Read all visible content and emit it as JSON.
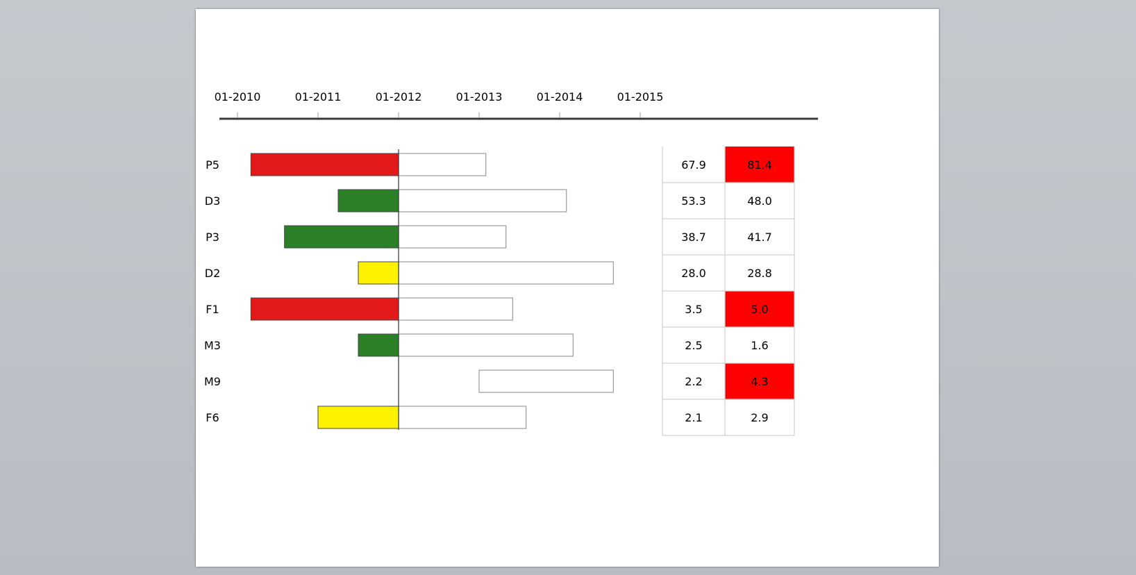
{
  "chart_data": {
    "type": "bar",
    "axis_ticks": [
      "01-2010",
      "01-2011",
      "01-2012",
      "01-2013",
      "01-2014",
      "01-2015"
    ],
    "x_range": [
      "2009-12",
      "2016-10"
    ],
    "reference_date": "2012-01",
    "rows": [
      {
        "label": "P5",
        "start": "2010-03",
        "end": "2013-02",
        "color": "#e31a1c",
        "val1": "67.9",
        "val2": "81.4",
        "val2_highlight": true
      },
      {
        "label": "D3",
        "start": "2011-04",
        "end": "2014-02",
        "color": "#2a7f27",
        "val1": "53.3",
        "val2": "48.0",
        "val2_highlight": false
      },
      {
        "label": "P3",
        "start": "2010-08",
        "end": "2013-05",
        "color": "#2a7f27",
        "val1": "38.7",
        "val2": "41.7",
        "val2_highlight": false
      },
      {
        "label": "D2",
        "start": "2011-07",
        "end": "2014-09",
        "color": "#fff200",
        "val1": "28.0",
        "val2": "28.8",
        "val2_highlight": false
      },
      {
        "label": "F1",
        "start": "2010-03",
        "end": "2013-06",
        "color": "#e31a1c",
        "val1": "3.5",
        "val2": "5.0",
        "val2_highlight": true
      },
      {
        "label": "M3",
        "start": "2011-07",
        "end": "2014-03",
        "color": "#2a7f27",
        "val1": "2.5",
        "val2": "1.6",
        "val2_highlight": false
      },
      {
        "label": "M9",
        "start": "2013-01",
        "end": "2014-09",
        "color": null,
        "val1": "2.2",
        "val2": "4.3",
        "val2_highlight": true
      },
      {
        "label": "F6",
        "start": "2011-01",
        "end": "2013-08",
        "color": "#fff200",
        "val1": "2.1",
        "val2": "2.9",
        "val2_highlight": false
      }
    ],
    "highlight_color": "#ff0000"
  }
}
